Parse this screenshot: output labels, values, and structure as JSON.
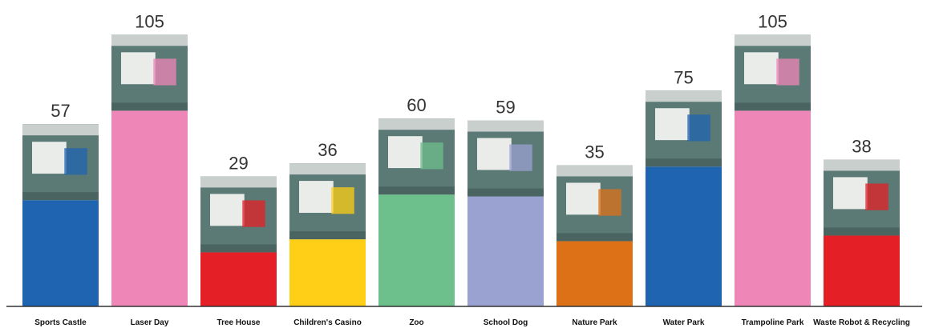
{
  "chart_data": {
    "type": "bar",
    "title": "",
    "xlabel": "",
    "ylabel": "",
    "ylim": [
      0,
      105
    ],
    "grid": false,
    "legend": "none",
    "categories": [
      "Sports Castle",
      "Laser Day",
      "Tree House",
      "Children's Casino",
      "Zoo",
      "School Dog",
      "Nature Park",
      "Water Park",
      "Trampoline Park",
      "Waste Robot & Recycling"
    ],
    "values": [
      57,
      105,
      29,
      36,
      60,
      59,
      35,
      75,
      105,
      38
    ],
    "value_labels": [
      "57",
      "105",
      "29",
      "36",
      "60",
      "59",
      "35",
      "75",
      "105",
      "38"
    ],
    "colors": [
      "#1f64b0",
      "#ef86b8",
      "#e41f26",
      "#fecf16",
      "#6dbf8c",
      "#9aa2d2",
      "#dc7118",
      "#1f64b0",
      "#ef86b8",
      "#e41f26"
    ]
  }
}
